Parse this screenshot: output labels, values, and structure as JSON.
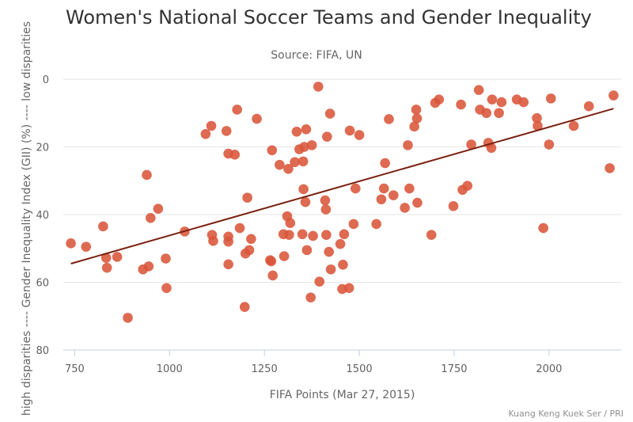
{
  "chart_data": {
    "type": "scatter",
    "title": "Women's National Soccer Teams and Gender Inequality",
    "subtitle": "Source: FIFA, UN",
    "credit": "Kuang Keng Kuek Ser / PRI",
    "xlabel": "FIFA Points (Mar 27, 2015)",
    "ylabel": "high disparities ---- Gender Inequality Index (GII) (%) ---- low disparities",
    "xlim": [
      720,
      2190
    ],
    "ylim": [
      0,
      80
    ],
    "y_reversed": true,
    "x_ticks": [
      750,
      1000,
      1250,
      1500,
      1750,
      2000
    ],
    "y_ticks": [
      0,
      20,
      40,
      60,
      80
    ],
    "grid": "horizontal",
    "legend": "none",
    "point_color": "#d9553a",
    "trendline": {
      "color": "#7a2010",
      "x": [
        740,
        2170
      ],
      "y": [
        54.5,
        8.7
      ]
    },
    "points": [
      {
        "x": 740,
        "y": 48.5
      },
      {
        "x": 780,
        "y": 49.5
      },
      {
        "x": 825,
        "y": 43.5
      },
      {
        "x": 833,
        "y": 52.8
      },
      {
        "x": 835,
        "y": 55.7
      },
      {
        "x": 862,
        "y": 52.5
      },
      {
        "x": 890,
        "y": 70.5
      },
      {
        "x": 930,
        "y": 56.2
      },
      {
        "x": 940,
        "y": 28.3
      },
      {
        "x": 945,
        "y": 55.3
      },
      {
        "x": 950,
        "y": 41.0
      },
      {
        "x": 970,
        "y": 38.3
      },
      {
        "x": 990,
        "y": 53.0
      },
      {
        "x": 992,
        "y": 61.7
      },
      {
        "x": 1040,
        "y": 45.0
      },
      {
        "x": 1095,
        "y": 16.2
      },
      {
        "x": 1110,
        "y": 13.8
      },
      {
        "x": 1112,
        "y": 46.0
      },
      {
        "x": 1115,
        "y": 47.8
      },
      {
        "x": 1150,
        "y": 15.3
      },
      {
        "x": 1155,
        "y": 22.0
      },
      {
        "x": 1155,
        "y": 46.5
      },
      {
        "x": 1155,
        "y": 48.0
      },
      {
        "x": 1155,
        "y": 54.7
      },
      {
        "x": 1172,
        "y": 22.3
      },
      {
        "x": 1178,
        "y": 9.0
      },
      {
        "x": 1185,
        "y": 44.0
      },
      {
        "x": 1198,
        "y": 67.3
      },
      {
        "x": 1200,
        "y": 51.5
      },
      {
        "x": 1205,
        "y": 35.0
      },
      {
        "x": 1210,
        "y": 50.5
      },
      {
        "x": 1215,
        "y": 47.2
      },
      {
        "x": 1230,
        "y": 11.7
      },
      {
        "x": 1265,
        "y": 53.5
      },
      {
        "x": 1268,
        "y": 53.8
      },
      {
        "x": 1270,
        "y": 21.0
      },
      {
        "x": 1272,
        "y": 58.0
      },
      {
        "x": 1290,
        "y": 25.3
      },
      {
        "x": 1300,
        "y": 45.8
      },
      {
        "x": 1302,
        "y": 52.3
      },
      {
        "x": 1310,
        "y": 40.5
      },
      {
        "x": 1313,
        "y": 26.5
      },
      {
        "x": 1315,
        "y": 46.0
      },
      {
        "x": 1318,
        "y": 42.5
      },
      {
        "x": 1330,
        "y": 24.5
      },
      {
        "x": 1335,
        "y": 15.5
      },
      {
        "x": 1342,
        "y": 20.7
      },
      {
        "x": 1350,
        "y": 45.8
      },
      {
        "x": 1352,
        "y": 24.3
      },
      {
        "x": 1353,
        "y": 32.5
      },
      {
        "x": 1355,
        "y": 20.0
      },
      {
        "x": 1358,
        "y": 36.3
      },
      {
        "x": 1360,
        "y": 14.8
      },
      {
        "x": 1362,
        "y": 50.5
      },
      {
        "x": 1372,
        "y": 64.5
      },
      {
        "x": 1375,
        "y": 19.5
      },
      {
        "x": 1378,
        "y": 46.3
      },
      {
        "x": 1392,
        "y": 2.2
      },
      {
        "x": 1395,
        "y": 59.8
      },
      {
        "x": 1410,
        "y": 35.8
      },
      {
        "x": 1412,
        "y": 38.5
      },
      {
        "x": 1413,
        "y": 46.0
      },
      {
        "x": 1415,
        "y": 17.0
      },
      {
        "x": 1420,
        "y": 51.0
      },
      {
        "x": 1423,
        "y": 10.2
      },
      {
        "x": 1425,
        "y": 56.2
      },
      {
        "x": 1450,
        "y": 48.7
      },
      {
        "x": 1455,
        "y": 62.0
      },
      {
        "x": 1457,
        "y": 54.8
      },
      {
        "x": 1460,
        "y": 45.8
      },
      {
        "x": 1473,
        "y": 61.7
      },
      {
        "x": 1475,
        "y": 15.2
      },
      {
        "x": 1485,
        "y": 42.8
      },
      {
        "x": 1490,
        "y": 32.3
      },
      {
        "x": 1500,
        "y": 16.5
      },
      {
        "x": 1545,
        "y": 42.8
      },
      {
        "x": 1558,
        "y": 35.5
      },
      {
        "x": 1565,
        "y": 32.3
      },
      {
        "x": 1568,
        "y": 24.8
      },
      {
        "x": 1578,
        "y": 11.8
      },
      {
        "x": 1590,
        "y": 34.3
      },
      {
        "x": 1620,
        "y": 38.0
      },
      {
        "x": 1628,
        "y": 19.5
      },
      {
        "x": 1632,
        "y": 32.3
      },
      {
        "x": 1645,
        "y": 14.0
      },
      {
        "x": 1650,
        "y": 9.0
      },
      {
        "x": 1652,
        "y": 11.6
      },
      {
        "x": 1653,
        "y": 36.5
      },
      {
        "x": 1690,
        "y": 46.0
      },
      {
        "x": 1700,
        "y": 7.0
      },
      {
        "x": 1710,
        "y": 6.0
      },
      {
        "x": 1748,
        "y": 37.5
      },
      {
        "x": 1768,
        "y": 7.5
      },
      {
        "x": 1772,
        "y": 32.7
      },
      {
        "x": 1785,
        "y": 31.5
      },
      {
        "x": 1795,
        "y": 19.3
      },
      {
        "x": 1815,
        "y": 3.2
      },
      {
        "x": 1818,
        "y": 9.0
      },
      {
        "x": 1835,
        "y": 10.0
      },
      {
        "x": 1840,
        "y": 18.8
      },
      {
        "x": 1848,
        "y": 20.3
      },
      {
        "x": 1850,
        "y": 6.0
      },
      {
        "x": 1868,
        "y": 10.0
      },
      {
        "x": 1875,
        "y": 6.8
      },
      {
        "x": 1915,
        "y": 6.0
      },
      {
        "x": 1933,
        "y": 6.8
      },
      {
        "x": 1968,
        "y": 11.5
      },
      {
        "x": 1970,
        "y": 13.8
      },
      {
        "x": 1985,
        "y": 44.0
      },
      {
        "x": 2000,
        "y": 19.3
      },
      {
        "x": 2005,
        "y": 5.7
      },
      {
        "x": 2065,
        "y": 13.8
      },
      {
        "x": 2105,
        "y": 8.0
      },
      {
        "x": 2160,
        "y": 26.3
      },
      {
        "x": 2170,
        "y": 4.8
      }
    ]
  }
}
